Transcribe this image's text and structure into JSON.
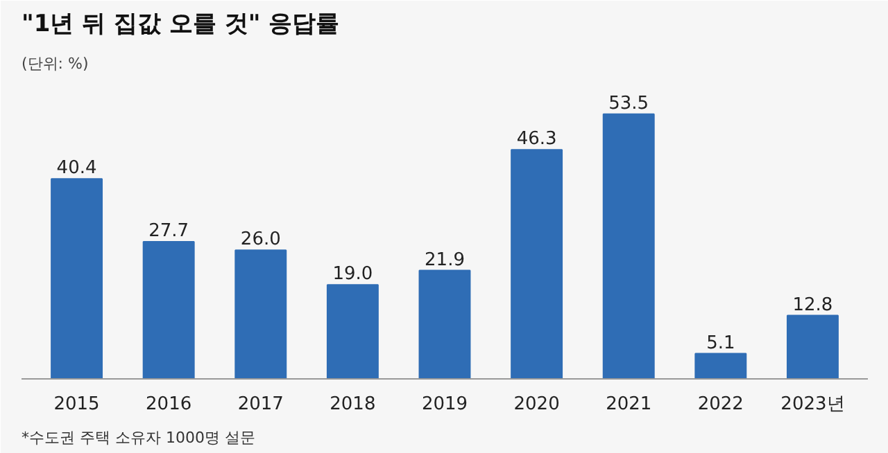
{
  "chart_data": {
    "type": "bar",
    "title": "\"1년 뒤 집값 오를 것\" 응답률",
    "subtitle": "(단위: %)",
    "categories": [
      "2015",
      "2016",
      "2017",
      "2018",
      "2019",
      "2020",
      "2021",
      "2022",
      "2023년"
    ],
    "values": [
      40.4,
      27.7,
      26.0,
      19.0,
      21.9,
      46.3,
      53.5,
      5.1,
      12.8
    ],
    "value_labels": [
      "40.4",
      "27.7",
      "26.0",
      "19.0",
      "21.9",
      "46.3",
      "53.5",
      "5.1",
      "12.8"
    ],
    "color": "#2f6db5",
    "grid": false,
    "annotations": [
      "*수도권 주택 소유자 1000명 설문"
    ]
  }
}
